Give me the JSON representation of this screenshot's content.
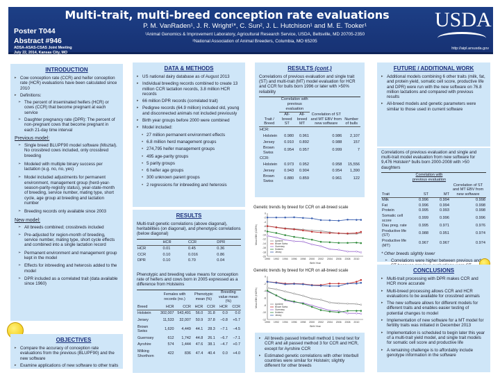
{
  "header": {
    "poster": "Poster T044",
    "abstract": "Abstract #946",
    "meeting_line1": "ADSA-ASAS-CSAS Joint Meeting",
    "meeting_line2": "July 22, 2014, Kansas City, MO",
    "title": "Multi-trait, multi-breed conception rate evaluations",
    "authors": "P. M. VanRaden¹, J. R. Wright¹*, C. Sun², J. L. Hutchison¹ and M. E. Tooker¹",
    "affiliation1": "¹Animal Genomics & Improvement  Laboratory, Agricultural Research Service, USDA, Beltsville, MD 20705-2350",
    "affiliation2": "²National Association of Animal Breeders, Columbia, MO 65205",
    "logo": "USDA",
    "url": "http://aipl.arsusda.gov"
  },
  "intro": {
    "heading": "INTRODUCTION",
    "b1": "Cow conception rate (CCR) and heifer conception rate (HCR) evaluations have been calculated since 2010",
    "b2": "Definitions:",
    "d1": "The percent of inseminated heifers (HCR) or cows (CCR) that become pregnant at each service",
    "d2": "Daughter pregnancy rate (DPR):  The percent of non-pregnant cows that become pregnant in each 21-day time interval",
    "prev_heading": "Previous model:",
    "p1": "Single breed BLUPF90 model software (Misztal). No crossbred cows included, only crossbred breeding",
    "p2": "Modeled with multiple binary success per lactation (e.g. no, no, yes)",
    "p3": "Model included adjustments for permanent environment, management group (herd-year-season-parity-registry status), year-state-month of breeding, service number, mating type, short cycle, age group at breeding and lactation number",
    "p4": "Breeding records only available since 2003",
    "new_heading": "New model:",
    "n1": "All breeds combined; crossbreds included",
    "n2": "Pre-adjusted for region-month of breeding, service number, mating type, short cycle effects and combined into a single lactation record",
    "n3": "Permanent environment and management group kept in the model",
    "n4": "Effects for inbreeding and heterosis added to the model",
    "n5": "DPR included as a correlated trait (data available since 1960)"
  },
  "objectives": {
    "heading": "OBJECTIVES",
    "o1": "Compare the accuracy of conception rate evaluations from the previous (BLUPF90) and the new software",
    "o2": "Examine applications of new software to other traits"
  },
  "methods": {
    "heading": "DATA & METHODS",
    "b1": "US national dairy database as of August 2013",
    "b2": "Individual breeding records combined to create 13 million CCR lactation records, 3.8 million HCR records",
    "b3": "66 million DPR records (correlated trait)",
    "b4": "Pedigree records (64.9 million) included old, young and disconnected animals not included previously",
    "b5": "Birth year groups before 2000 were combined",
    "b6": "Model included:",
    "s": [
      "27 million permanent environment effects",
      "6.8 million herd management groups",
      "274,795 heifer management groups",
      "495 age-parity groups",
      "5 parity groups",
      "6 heifer age groups",
      "300 unknown parent groups",
      "2 regressions for inbreeding and heterosis"
    ]
  },
  "results": {
    "heading": "RESULTS",
    "gen_caption": "Multi-trait genetic correlations (above diagonal), heritabilities (on diagonal), and phenotypic correlations (below diagonal)",
    "gen_cols": [
      "",
      "HCR",
      "CCR",
      "DPR"
    ],
    "gen_rows": [
      [
        "HCR",
        "0.01",
        "0.45",
        "0.36"
      ],
      [
        "CCR",
        "0.10",
        "0.016",
        "0.86"
      ],
      [
        "DPR",
        "0.10",
        "0.70",
        "0.04"
      ]
    ],
    "means_caption": "Phenotypic and breeding value means for conception rate of heifers and cows born in 2005 expressed as a difference from Holsteins",
    "means_groups": [
      "Females with records (no.)",
      "Phenotypic mean (%)",
      "Breeding value mean (%)"
    ],
    "means_cols": [
      "Breed",
      "HCR",
      "CCR",
      "HCR",
      "CCR",
      "HCR",
      "CCR"
    ],
    "means_rows": [
      [
        "Holstein",
        "302,007",
        "543,491",
        "56.0",
        "31.8",
        "0.0",
        "0.0"
      ],
      [
        "Jersey",
        "11,533",
        "32,007",
        "50.9",
        "37.8",
        "−0.8",
        "+5.7"
      ],
      [
        "Brown Swiss",
        "1,620",
        "4,449",
        "44.1",
        "28.3",
        "−7.1",
        "−4.5"
      ],
      [
        "Guernsey",
        "612",
        "1,742",
        "44.8",
        "26.1",
        "−6.7",
        "−7.1"
      ],
      [
        "Ayrshire",
        "574",
        "1,444",
        "47.6",
        "38.1",
        "−4.7",
        "+0.7"
      ],
      [
        "Milking Shorthorn",
        "422",
        "836",
        "47.4",
        "40.4",
        "0.0",
        "+4.0"
      ]
    ]
  },
  "results_cont": {
    "heading": "RESULTS",
    "heading_suffix": "(cont.)",
    "caption": "Correlations of previous evaluation and single trait (ST) and multi-trait (MT) model evaluation for HCR and CCR for bulls born 1996 or later with >50% reliability",
    "group": "Correlation with previous evaluation",
    "cols": [
      "Trait / Breed",
      "All-breed ST",
      "All-breed MT",
      "Correlation of ST and MT EBV from new software",
      "Number of bulls"
    ],
    "sections": [
      {
        "label": "HCR:",
        "rows": [
          [
            "Holstein",
            "0.980",
            "0.961",
            "0.986",
            "2,107"
          ],
          [
            "Jersey",
            "0.910",
            "0.892",
            "0.988",
            "157"
          ],
          [
            "Brown Swiss",
            "0.954",
            "0.957",
            "0.999",
            "7"
          ]
        ]
      },
      {
        "label": "CCR:",
        "rows": [
          [
            "Holstein",
            "0.973",
            "0.952",
            "0.958",
            "15,556"
          ],
          [
            "Jersey",
            "0.943",
            "0.904",
            "0.954",
            "1,390"
          ],
          [
            "Brown Swiss",
            "0.880",
            "0.859",
            "0.961",
            "122"
          ]
        ]
      }
    ],
    "bullets": [
      "All breeds passed Interbull method 1 trend test  for CCR and all passed method 3 for CCR and HCR, except for Ayrshire CCR",
      "Estimated genetic correlations with other Interbull countries were similar for Holstein; slightly different for other breeds"
    ]
  },
  "chart_data": [
    {
      "type": "line",
      "title": "Genetic trends by breed for CCR on all-breed scale",
      "xlabel": "Birth Year",
      "ylabel": "Mean EBV (CCR%)",
      "x": [
        1990,
        1992,
        1994,
        1996,
        1998,
        2000,
        2002,
        2004,
        2006,
        2008,
        2010,
        2011
      ],
      "xticks": [
        1990,
        1992,
        1994,
        1996,
        1998,
        2000,
        2002,
        2004,
        2006,
        2008,
        2010
      ],
      "ylim": [
        -20,
        0
      ],
      "yticks": [
        0,
        -2,
        -4,
        -6,
        -8,
        -10,
        -12,
        -14,
        -16,
        -18,
        -20
      ],
      "legend": "bottom-left",
      "series": [
        {
          "name": "Ayrshire",
          "color": "#8a8a8a",
          "values": [
            -6,
            -6.5,
            -7,
            -7.3,
            -7.6,
            -8,
            -8.2,
            -8.8,
            -9.4,
            -9.6,
            -9.6,
            -9.2
          ]
        },
        {
          "name": "Brown Swiss",
          "color": "#c03030",
          "values": [
            -6,
            -6.6,
            -7.2,
            -7.5,
            -8,
            -8.6,
            -9,
            -9.2,
            -9.3,
            -9.4,
            -9.2,
            -8.7
          ]
        },
        {
          "name": "Guernsey",
          "color": "#9a6ad0",
          "values": [
            -10.5,
            -11.3,
            -12.4,
            -13,
            -13.2,
            -14.5,
            -15.3,
            -16.7,
            -17,
            -17.8,
            -17.8,
            -18.2
          ]
        },
        {
          "name": "Holstein",
          "color": "#2f8a3a",
          "values": [
            -8.5,
            -9.2,
            -10.2,
            -11,
            -11.6,
            -12.3,
            -13.3,
            -13.5,
            -13.8,
            -13.8,
            -13.7,
            -13.9
          ]
        },
        {
          "name": "Jersey",
          "color": "#3a5fb0",
          "values": [
            -2,
            -2,
            -2,
            -1.9,
            -2.2,
            -2.4,
            -3.2,
            -3.3,
            -3.5,
            -3,
            -3.1,
            -3.1
          ]
        }
      ]
    },
    {
      "type": "line",
      "title": "Genetic trends by breed for HCR on all-breed scale",
      "xlabel": "Birth Year",
      "ylabel": "Mean EBV (HCR%)",
      "x": [
        1990,
        1992,
        1994,
        1996,
        1998,
        2000,
        2002,
        2004,
        2006,
        2008,
        2010,
        2011
      ],
      "xticks": [
        1990,
        1992,
        1994,
        1996,
        1998,
        2000,
        2002,
        2004,
        2006,
        2008,
        2010
      ],
      "ylim": [
        -12,
        0
      ],
      "yticks": [
        0,
        -2,
        -4,
        -6,
        -8,
        -10,
        -12
      ],
      "legend": "bottom-left",
      "series": [
        {
          "name": "Ayrshire",
          "color": "#8a8a8a",
          "values": [
            -3.2,
            -3.6,
            -4.2,
            -4.8,
            -5.4,
            -6.2,
            -6.5,
            -7.3,
            -7.5,
            -7.6,
            -7.7,
            -7.9
          ]
        },
        {
          "name": "Brown Swiss",
          "color": "#c03030",
          "values": [
            -1.5,
            -1.7,
            -2,
            -2,
            -2.1,
            -2.4,
            -2.4,
            -2,
            -2,
            -2,
            -1.5,
            -1
          ]
        },
        {
          "name": "Guernsey",
          "color": "#9a6ad0",
          "values": [
            -4.2,
            -5.3,
            -6.7,
            -7.2,
            -7.4,
            -8.1,
            -8.8,
            -9.5,
            -9.6,
            -10.3,
            -10.3,
            -10.4
          ]
        },
        {
          "name": "Holstein",
          "color": "#2f8a3a",
          "values": [
            -4,
            -5.3,
            -6.5,
            -7,
            -7.6,
            -8.5,
            -9.4,
            -9.8,
            -10,
            -9.6,
            -9.6,
            -9.6
          ]
        },
        {
          "name": "Jersey",
          "color": "#3a5fb0",
          "values": [
            -1.5,
            -1.8,
            -2.2,
            -2.1,
            -2.2,
            -2.5,
            -2.6,
            -2.7,
            -2.7,
            -2,
            -2,
            -1.8
          ]
        }
      ]
    }
  ],
  "future": {
    "heading": "FUTURE  / ADDITIONAL WORK",
    "b1": "Additional models combining 6 other traits (milk, fat, and protein yield, somatic cell score, productive life and DPR) were run with the new software on 76.8 million lactations and compared with previous results",
    "b2": "All-breed models and genetic parameters were similar to those used in current software",
    "caption": "Correlations of previous evaluation and single and multi-trait model evaluation from new software for 9,476 Holstein* bulls born 2000-2008 with >50 daughters",
    "group": "Correlation with previous evaluation",
    "cols": [
      "Trait",
      "ST",
      "MT",
      "Correlation of ST and MT EBV from new software"
    ],
    "rows": [
      [
        "Milk",
        "0.996",
        "0.994",
        "0.998"
      ],
      [
        "Fat",
        "0.996",
        "0.994",
        "0.998"
      ],
      [
        "Protein",
        "0.995",
        "0.993",
        "0.998"
      ],
      [
        "Somatic cell score",
        "0.999",
        "0.996",
        "0.996"
      ],
      [
        "Dau preg. rate",
        "0.995",
        "0.971",
        "0.976"
      ],
      [
        "Productive life (ST)",
        "0.988",
        "0.951",
        "0.974"
      ],
      [
        "Productive life (MT)",
        "0.967",
        "0.967",
        "0.974"
      ]
    ],
    "footnote": "* Other breeds slightly lower",
    "note": "Correlations were higher between previous and ST because previous evaluations were ST"
  },
  "conclusions": {
    "heading": "CONCLUSIONS",
    "items": [
      "Multi-trait processing with DPR makes CCR and HCR more accurate",
      "Multi-breed processing allows CCR and HCR evaluations to be available for crossbred animals",
      "The new software allows for different models for different traits and enables easier testing of potential changes to model",
      "Implementation of new software for a MT model for fertility traits was initiated in December 2013",
      "Implementation is scheduled to begin later this year of a multi-trait yield model, and single trait models for somatic cell score and productive life",
      "A remaining challenge is to affordably include genotype information in the software"
    ]
  }
}
